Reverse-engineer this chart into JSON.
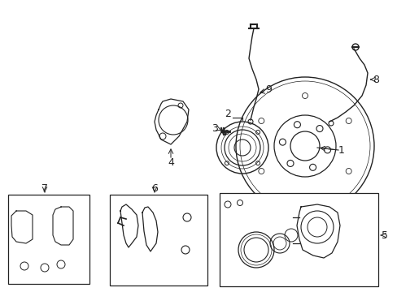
{
  "bg_color": "#ffffff",
  "line_color": "#222222",
  "figsize": [
    4.89,
    3.6
  ],
  "dpi": 100,
  "xlim": [
    0,
    489
  ],
  "ylim": [
    0,
    360
  ]
}
